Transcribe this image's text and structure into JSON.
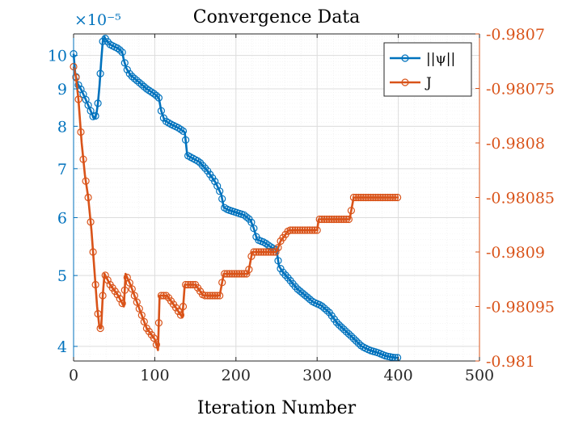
{
  "chart_data": {
    "type": "line",
    "title": "Convergence Data",
    "xlabel": "Iteration Number",
    "ylabel_left": "",
    "ylabel_right": "",
    "xlim": [
      0,
      500
    ],
    "xticks": [
      0,
      100,
      200,
      300,
      400,
      500
    ],
    "xtick_labels": [
      "0",
      "100",
      "200",
      "300",
      "400",
      "500"
    ],
    "left_axis": {
      "scale": "log",
      "exponent_label": "×10⁻⁵",
      "multiplier": 1e-05,
      "ylim": [
        3.82,
        10.7
      ],
      "ticks": [
        4,
        5,
        6,
        7,
        8,
        9,
        10
      ],
      "tick_labels": [
        "4",
        "5",
        "6",
        "7",
        "8",
        "9",
        "10"
      ],
      "color": "#0072BD"
    },
    "right_axis": {
      "scale": "linear",
      "ylim": [
        -0.981,
        -0.9807
      ],
      "ticks": [
        -0.981,
        -0.98095,
        -0.9809,
        -0.98085,
        -0.9808,
        -0.98075,
        -0.9807
      ],
      "tick_labels": [
        "-0.981",
        "-0.98095",
        "-0.9809",
        "-0.98085",
        "-0.9808",
        "-0.98075",
        "-0.9807"
      ],
      "color": "#D95319"
    },
    "grid": true,
    "legend_position": "top-right",
    "series": [
      {
        "name": "||ψ||",
        "axis": "left",
        "color": "#0072BD",
        "marker": "circle",
        "points": [
          [
            0,
            10.05
          ],
          [
            2,
            9.45
          ],
          [
            5,
            9.15
          ],
          [
            10,
            8.95
          ],
          [
            15,
            8.7
          ],
          [
            20,
            8.45
          ],
          [
            25,
            8.2
          ],
          [
            28,
            8.3
          ],
          [
            30,
            8.6
          ],
          [
            32,
            9.1
          ],
          [
            34,
            9.8
          ],
          [
            36,
            10.45
          ],
          [
            38,
            10.6
          ],
          [
            40,
            10.5
          ],
          [
            45,
            10.35
          ],
          [
            50,
            10.28
          ],
          [
            55,
            10.22
          ],
          [
            60,
            10.1
          ],
          [
            62,
            9.85
          ],
          [
            65,
            9.6
          ],
          [
            70,
            9.4
          ],
          [
            80,
            9.2
          ],
          [
            90,
            9.0
          ],
          [
            100,
            8.85
          ],
          [
            105,
            8.75
          ],
          [
            108,
            8.4
          ],
          [
            112,
            8.15
          ],
          [
            120,
            8.05
          ],
          [
            130,
            7.95
          ],
          [
            137,
            7.85
          ],
          [
            140,
            7.3
          ],
          [
            145,
            7.25
          ],
          [
            155,
            7.15
          ],
          [
            165,
            6.95
          ],
          [
            175,
            6.7
          ],
          [
            182,
            6.45
          ],
          [
            185,
            6.2
          ],
          [
            190,
            6.15
          ],
          [
            200,
            6.1
          ],
          [
            210,
            6.05
          ],
          [
            218,
            5.95
          ],
          [
            222,
            5.8
          ],
          [
            226,
            5.6
          ],
          [
            235,
            5.55
          ],
          [
            245,
            5.45
          ],
          [
            250,
            5.42
          ],
          [
            253,
            5.15
          ],
          [
            258,
            5.05
          ],
          [
            265,
            4.95
          ],
          [
            275,
            4.8
          ],
          [
            285,
            4.7
          ],
          [
            295,
            4.6
          ],
          [
            305,
            4.55
          ],
          [
            315,
            4.45
          ],
          [
            325,
            4.3
          ],
          [
            335,
            4.2
          ],
          [
            345,
            4.1
          ],
          [
            355,
            4.0
          ],
          [
            365,
            3.95
          ],
          [
            375,
            3.92
          ],
          [
            385,
            3.88
          ],
          [
            395,
            3.86
          ],
          [
            400,
            3.86
          ]
        ]
      },
      {
        "name": "J",
        "axis": "right",
        "color": "#D95319",
        "marker": "circle",
        "points": [
          [
            0,
            -0.98073
          ],
          [
            3,
            -0.98074
          ],
          [
            6,
            -0.98076
          ],
          [
            10,
            -0.9808
          ],
          [
            14,
            -0.98083
          ],
          [
            18,
            -0.98085
          ],
          [
            22,
            -0.98088
          ],
          [
            26,
            -0.98092
          ],
          [
            29,
            -0.98095
          ],
          [
            32,
            -0.98097
          ],
          [
            34,
            -0.98097
          ],
          [
            36,
            -0.98094
          ],
          [
            38,
            -0.98092
          ],
          [
            45,
            -0.98093
          ],
          [
            55,
            -0.98094
          ],
          [
            62,
            -0.98095
          ],
          [
            64,
            -0.98092
          ],
          [
            70,
            -0.98093
          ],
          [
            80,
            -0.98095
          ],
          [
            90,
            -0.98097
          ],
          [
            100,
            -0.98098
          ],
          [
            104,
            -0.98099
          ],
          [
            106,
            -0.98094
          ],
          [
            115,
            -0.98094
          ],
          [
            125,
            -0.98095
          ],
          [
            134,
            -0.98096
          ],
          [
            137,
            -0.98093
          ],
          [
            150,
            -0.98093
          ],
          [
            160,
            -0.98094
          ],
          [
            170,
            -0.98094
          ],
          [
            180,
            -0.98094
          ],
          [
            185,
            -0.98092
          ],
          [
            200,
            -0.98092
          ],
          [
            215,
            -0.98092
          ],
          [
            220,
            -0.9809
          ],
          [
            240,
            -0.9809
          ],
          [
            250,
            -0.9809
          ],
          [
            255,
            -0.98089
          ],
          [
            265,
            -0.98088
          ],
          [
            290,
            -0.98088
          ],
          [
            300,
            -0.98088
          ],
          [
            302,
            -0.98087
          ],
          [
            315,
            -0.98087
          ],
          [
            340,
            -0.98087
          ],
          [
            345,
            -0.98085
          ],
          [
            370,
            -0.98085
          ],
          [
            390,
            -0.98085
          ],
          [
            400,
            -0.98085
          ]
        ]
      }
    ]
  }
}
